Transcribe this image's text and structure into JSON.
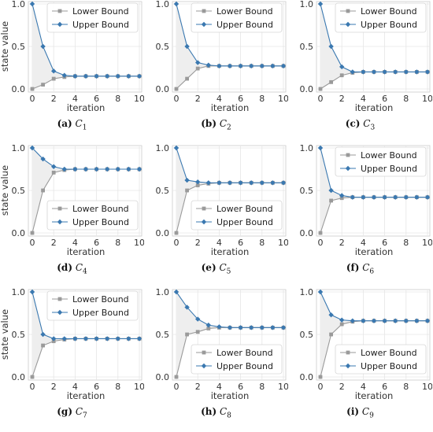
{
  "colors": {
    "lower": "#9a9a9a",
    "upper": "#3a78b0",
    "fill": "#eeeeee",
    "grid": "#e6e6e6",
    "frame": "#cccccc"
  },
  "chart_data": [
    {
      "type": "line",
      "caption_label": "(a)",
      "caption_sub": "1",
      "legend_position": "top-right",
      "x": [
        0,
        1,
        2,
        3,
        4,
        5,
        6,
        7,
        8,
        9,
        10
      ],
      "xlabel": "iteration",
      "ylabel": "state value",
      "xlim": [
        0,
        10
      ],
      "ylim": [
        0,
        1
      ],
      "xticks": [
        "0",
        "2",
        "4",
        "6",
        "8",
        "10"
      ],
      "yticks": [
        "0.0",
        "0.5",
        "1.0"
      ],
      "grid": true,
      "series": [
        {
          "name": "Lower Bound",
          "marker": "square",
          "values": [
            0.0,
            0.05,
            0.12,
            0.14,
            0.15,
            0.15,
            0.15,
            0.15,
            0.15,
            0.15,
            0.15
          ]
        },
        {
          "name": "Upper Bound",
          "marker": "diamond",
          "values": [
            1.0,
            0.5,
            0.21,
            0.16,
            0.15,
            0.15,
            0.15,
            0.15,
            0.15,
            0.15,
            0.15
          ]
        }
      ]
    },
    {
      "type": "line",
      "caption_label": "(b)",
      "caption_sub": "2",
      "legend_position": "top-right",
      "x": [
        0,
        1,
        2,
        3,
        4,
        5,
        6,
        7,
        8,
        9,
        10
      ],
      "xlabel": "iteration",
      "ylabel": "",
      "xlim": [
        0,
        10
      ],
      "ylim": [
        0,
        1
      ],
      "xticks": [
        "0",
        "2",
        "4",
        "6",
        "8",
        "10"
      ],
      "yticks": [
        "0.0",
        "0.5",
        "1.0"
      ],
      "grid": true,
      "series": [
        {
          "name": "Lower Bound",
          "marker": "square",
          "values": [
            0.0,
            0.12,
            0.24,
            0.27,
            0.27,
            0.27,
            0.27,
            0.27,
            0.27,
            0.27,
            0.27
          ]
        },
        {
          "name": "Upper Bound",
          "marker": "diamond",
          "values": [
            1.0,
            0.5,
            0.31,
            0.28,
            0.27,
            0.27,
            0.27,
            0.27,
            0.27,
            0.27,
            0.27
          ]
        }
      ]
    },
    {
      "type": "line",
      "caption_label": "(c)",
      "caption_sub": "3",
      "legend_position": "top-right",
      "x": [
        0,
        1,
        2,
        3,
        4,
        5,
        6,
        7,
        8,
        9,
        10
      ],
      "xlabel": "iteration",
      "ylabel": "",
      "xlim": [
        0,
        10
      ],
      "ylim": [
        0,
        1
      ],
      "xticks": [
        "0",
        "2",
        "4",
        "6",
        "8",
        "10"
      ],
      "yticks": [
        "0.0",
        "0.5",
        "1.0"
      ],
      "grid": true,
      "series": [
        {
          "name": "Lower Bound",
          "marker": "square",
          "values": [
            0.0,
            0.08,
            0.16,
            0.19,
            0.2,
            0.2,
            0.2,
            0.2,
            0.2,
            0.2,
            0.2
          ]
        },
        {
          "name": "Upper Bound",
          "marker": "diamond",
          "values": [
            1.0,
            0.5,
            0.26,
            0.2,
            0.2,
            0.2,
            0.2,
            0.2,
            0.2,
            0.2,
            0.2
          ]
        }
      ]
    },
    {
      "type": "line",
      "caption_label": "(d)",
      "caption_sub": "4",
      "legend_position": "bottom-right",
      "x": [
        0,
        1,
        2,
        3,
        4,
        5,
        6,
        7,
        8,
        9,
        10
      ],
      "xlabel": "iteration",
      "ylabel": "state value",
      "xlim": [
        0,
        10
      ],
      "ylim": [
        0,
        1
      ],
      "xticks": [
        "0",
        "2",
        "4",
        "6",
        "8",
        "10"
      ],
      "yticks": [
        "0.0",
        "0.5",
        "1.0"
      ],
      "grid": true,
      "series": [
        {
          "name": "Lower Bound",
          "marker": "square",
          "values": [
            0.0,
            0.5,
            0.71,
            0.74,
            0.75,
            0.75,
            0.75,
            0.75,
            0.75,
            0.75,
            0.75
          ]
        },
        {
          "name": "Upper Bound",
          "marker": "diamond",
          "values": [
            1.0,
            0.87,
            0.78,
            0.75,
            0.75,
            0.75,
            0.75,
            0.75,
            0.75,
            0.75,
            0.75
          ]
        }
      ]
    },
    {
      "type": "line",
      "caption_label": "(e)",
      "caption_sub": "5",
      "legend_position": "bottom-right",
      "x": [
        0,
        1,
        2,
        3,
        4,
        5,
        6,
        7,
        8,
        9,
        10
      ],
      "xlabel": "iteration",
      "ylabel": "",
      "xlim": [
        0,
        10
      ],
      "ylim": [
        0,
        1
      ],
      "xticks": [
        "0",
        "2",
        "4",
        "6",
        "8",
        "10"
      ],
      "yticks": [
        "0.0",
        "0.5",
        "1.0"
      ],
      "grid": true,
      "series": [
        {
          "name": "Lower Bound",
          "marker": "square",
          "values": [
            0.0,
            0.5,
            0.56,
            0.58,
            0.59,
            0.59,
            0.59,
            0.59,
            0.59,
            0.59,
            0.59
          ]
        },
        {
          "name": "Upper Bound",
          "marker": "diamond",
          "values": [
            1.0,
            0.62,
            0.6,
            0.59,
            0.59,
            0.59,
            0.59,
            0.59,
            0.59,
            0.59,
            0.59
          ]
        }
      ]
    },
    {
      "type": "line",
      "caption_label": "(f)",
      "caption_sub": "6",
      "legend_position": "top-right",
      "x": [
        0,
        1,
        2,
        3,
        4,
        5,
        6,
        7,
        8,
        9,
        10
      ],
      "xlabel": "iteration",
      "ylabel": "",
      "xlim": [
        0,
        10
      ],
      "ylim": [
        0,
        1
      ],
      "xticks": [
        "0",
        "2",
        "4",
        "6",
        "8",
        "10"
      ],
      "yticks": [
        "0.0",
        "0.5",
        "1.0"
      ],
      "grid": true,
      "series": [
        {
          "name": "Lower Bound",
          "marker": "square",
          "values": [
            0.0,
            0.38,
            0.41,
            0.42,
            0.42,
            0.42,
            0.42,
            0.42,
            0.42,
            0.42,
            0.42
          ]
        },
        {
          "name": "Upper Bound",
          "marker": "diamond",
          "values": [
            1.0,
            0.5,
            0.44,
            0.42,
            0.42,
            0.42,
            0.42,
            0.42,
            0.42,
            0.42,
            0.42
          ]
        }
      ]
    },
    {
      "type": "line",
      "caption_label": "(g)",
      "caption_sub": "7",
      "legend_position": "top-right",
      "x": [
        0,
        1,
        2,
        3,
        4,
        5,
        6,
        7,
        8,
        9,
        10
      ],
      "xlabel": "iteration",
      "ylabel": "state value",
      "xlim": [
        0,
        10
      ],
      "ylim": [
        0,
        1
      ],
      "xticks": [
        "0",
        "2",
        "4",
        "6",
        "8",
        "10"
      ],
      "yticks": [
        "0.0",
        "0.5",
        "1.0"
      ],
      "grid": true,
      "series": [
        {
          "name": "Lower Bound",
          "marker": "square",
          "values": [
            0.0,
            0.37,
            0.42,
            0.44,
            0.45,
            0.45,
            0.45,
            0.45,
            0.45,
            0.45,
            0.45
          ]
        },
        {
          "name": "Upper Bound",
          "marker": "diamond",
          "values": [
            1.0,
            0.5,
            0.45,
            0.45,
            0.45,
            0.45,
            0.45,
            0.45,
            0.45,
            0.45,
            0.45
          ]
        }
      ]
    },
    {
      "type": "line",
      "caption_label": "(h)",
      "caption_sub": "8",
      "legend_position": "bottom-right",
      "x": [
        0,
        1,
        2,
        3,
        4,
        5,
        6,
        7,
        8,
        9,
        10
      ],
      "xlabel": "iteration",
      "ylabel": "",
      "xlim": [
        0,
        10
      ],
      "ylim": [
        0,
        1
      ],
      "xticks": [
        "0",
        "2",
        "4",
        "6",
        "8",
        "10"
      ],
      "yticks": [
        "0.0",
        "0.5",
        "1.0"
      ],
      "grid": true,
      "series": [
        {
          "name": "Lower Bound",
          "marker": "square",
          "values": [
            0.0,
            0.5,
            0.53,
            0.57,
            0.58,
            0.58,
            0.58,
            0.58,
            0.58,
            0.58,
            0.58
          ]
        },
        {
          "name": "Upper Bound",
          "marker": "diamond",
          "values": [
            1.0,
            0.82,
            0.68,
            0.61,
            0.59,
            0.58,
            0.58,
            0.58,
            0.58,
            0.58,
            0.58
          ]
        }
      ]
    },
    {
      "type": "line",
      "caption_label": "(i)",
      "caption_sub": "9",
      "legend_position": "bottom-right",
      "x": [
        0,
        1,
        2,
        3,
        4,
        5,
        6,
        7,
        8,
        9,
        10
      ],
      "xlabel": "iteration",
      "ylabel": "",
      "xlim": [
        0,
        10
      ],
      "ylim": [
        0,
        1
      ],
      "xticks": [
        "0",
        "2",
        "4",
        "6",
        "8",
        "10"
      ],
      "yticks": [
        "0.0",
        "0.5",
        "1.0"
      ],
      "grid": true,
      "series": [
        {
          "name": "Lower Bound",
          "marker": "square",
          "values": [
            0.0,
            0.5,
            0.62,
            0.65,
            0.66,
            0.66,
            0.66,
            0.66,
            0.66,
            0.66,
            0.66
          ]
        },
        {
          "name": "Upper Bound",
          "marker": "diamond",
          "values": [
            1.0,
            0.73,
            0.67,
            0.66,
            0.66,
            0.66,
            0.66,
            0.66,
            0.66,
            0.66,
            0.66
          ]
        }
      ]
    }
  ]
}
